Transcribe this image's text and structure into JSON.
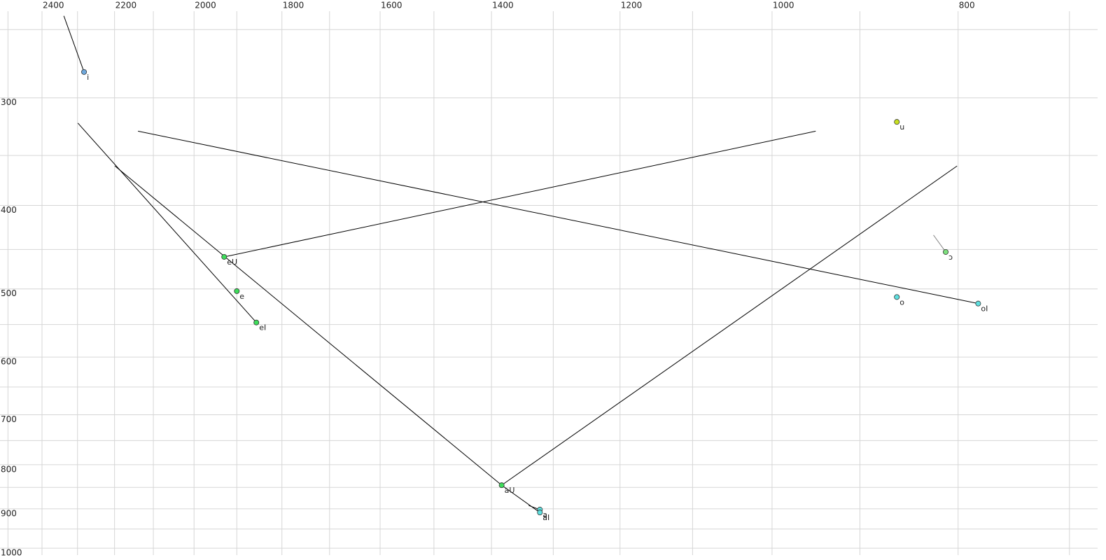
{
  "chart_data": {
    "type": "scatter",
    "x_scale": "log",
    "y_scale": "log",
    "x_reversed": true,
    "xlim": [
      2524,
      670
    ],
    "ylim": [
      231,
      1032
    ],
    "xticks": [
      2400,
      2200,
      2000,
      1800,
      1600,
      1400,
      1200,
      1000,
      800
    ],
    "xgrid": [
      2500,
      2400,
      2300,
      2200,
      2100,
      2000,
      1900,
      1800,
      1700,
      1600,
      1500,
      1400,
      1300,
      1200,
      1100,
      1000,
      900,
      800,
      700
    ],
    "yticks": [
      300,
      400,
      500,
      600,
      700,
      800,
      900,
      1000
    ],
    "ygrid": [
      250,
      300,
      350,
      400,
      450,
      500,
      550,
      600,
      650,
      700,
      750,
      800,
      850,
      900,
      950,
      1000
    ],
    "grid": true,
    "points": [
      {
        "label": "i",
        "color": "#6fa8dc",
        "x": 2282,
        "y": 280
      },
      {
        "label": "u",
        "color": "#c8e020",
        "x": 861,
        "y": 320
      },
      {
        "label": "eU",
        "color": "#3ddc5a",
        "x": 1929,
        "y": 459
      },
      {
        "label": "e",
        "color": "#3ddc5a",
        "x": 1900,
        "y": 503
      },
      {
        "label": "eI",
        "color": "#3ddc5a",
        "x": 1856,
        "y": 547
      },
      {
        "label": "aU",
        "color": "#3ddc5a",
        "x": 1383,
        "y": 845
      },
      {
        "label": "a",
        "color": "#5ee0e0",
        "x": 1321,
        "y": 902
      },
      {
        "label": "aI",
        "color": "#5ee0e0",
        "x": 1321,
        "y": 909
      },
      {
        "label": "o",
        "color": "#5ee0e0",
        "x": 861,
        "y": 511
      },
      {
        "label": "oI",
        "color": "#5ee0e0",
        "x": 781,
        "y": 520
      },
      {
        "label": "ɔ",
        "color": "#7de07d",
        "x": 812,
        "y": 453
      }
    ],
    "segments": [
      {
        "color": "#000000",
        "x": [
          2338,
          2282
        ],
        "y": [
          241,
          280
        ]
      },
      {
        "color": "#000000",
        "x": [
          2299,
          1856
        ],
        "y": [
          321,
          547
        ]
      },
      {
        "color": "#000000",
        "x": [
          2199,
          1383
        ],
        "y": [
          360,
          845
        ]
      },
      {
        "color": "#000000",
        "x": [
          1383,
          1321
        ],
        "y": [
          845,
          909
        ]
      },
      {
        "color": "#000000",
        "x": [
          1929,
          949
        ],
        "y": [
          459,
          328
        ]
      },
      {
        "color": "#000000",
        "x": [
          2139,
          781
        ],
        "y": [
          328,
          520
        ]
      },
      {
        "color": "#000000",
        "x": [
          1383,
          801
        ],
        "y": [
          845,
          360
        ]
      },
      {
        "color": "#000000",
        "x": [
          1339,
          1321
        ],
        "y": [
          892,
          902
        ]
      },
      {
        "color": "#888888",
        "x": [
          824,
          812
        ],
        "y": [
          433,
          453
        ]
      }
    ]
  }
}
